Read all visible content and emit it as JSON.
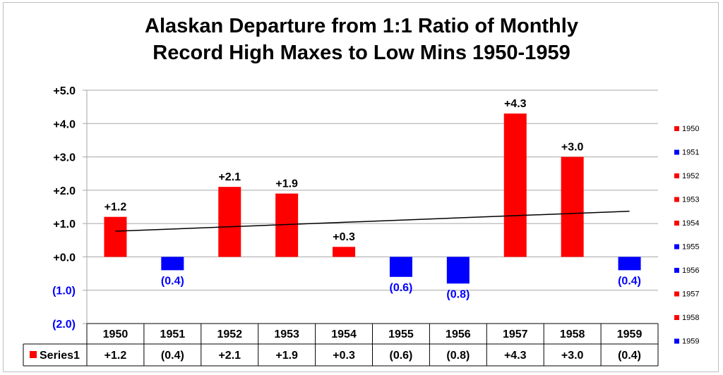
{
  "chart_data": {
    "type": "bar",
    "title_line1": "Alaskan Departure from 1:1 Ratio of Monthly",
    "title_line2": "Record High Maxes to Low Mins 1950-1959",
    "categories": [
      "1950",
      "1951",
      "1952",
      "1953",
      "1954",
      "1955",
      "1956",
      "1957",
      "1958",
      "1959"
    ],
    "series": [
      {
        "name": "Series1",
        "values": [
          1.2,
          -0.4,
          2.1,
          1.9,
          0.3,
          -0.6,
          -0.8,
          4.3,
          3.0,
          -0.4
        ]
      }
    ],
    "data_labels": [
      "+1.2",
      "(0.4)",
      "+2.1",
      "+1.9",
      "+0.3",
      "(0.6)",
      "(0.8)",
      "+4.3",
      "+3.0",
      "(0.4)"
    ],
    "ylim": [
      -2.0,
      5.0
    ],
    "y_ticks": [
      5.0,
      4.0,
      3.0,
      2.0,
      1.0,
      0.0,
      -1.0,
      -2.0
    ],
    "y_tick_labels": [
      "+5.0",
      "+4.0",
      "+3.0",
      "+2.0",
      "+1.0",
      "+0.0",
      "(1.0)",
      "(2.0)"
    ],
    "trendline": {
      "type": "linear",
      "start": 0.77,
      "end": 1.37
    },
    "legend_position": "right",
    "legend_entries": [
      "1950",
      "1951",
      "1952",
      "1953",
      "1954",
      "1955",
      "1956",
      "1957",
      "1958",
      "1959"
    ],
    "data_table": true,
    "grid": true,
    "colors": {
      "positive": "#ff0000",
      "negative": "#0000ff",
      "grid": "#a6a6a6",
      "trend": "#000000"
    }
  }
}
